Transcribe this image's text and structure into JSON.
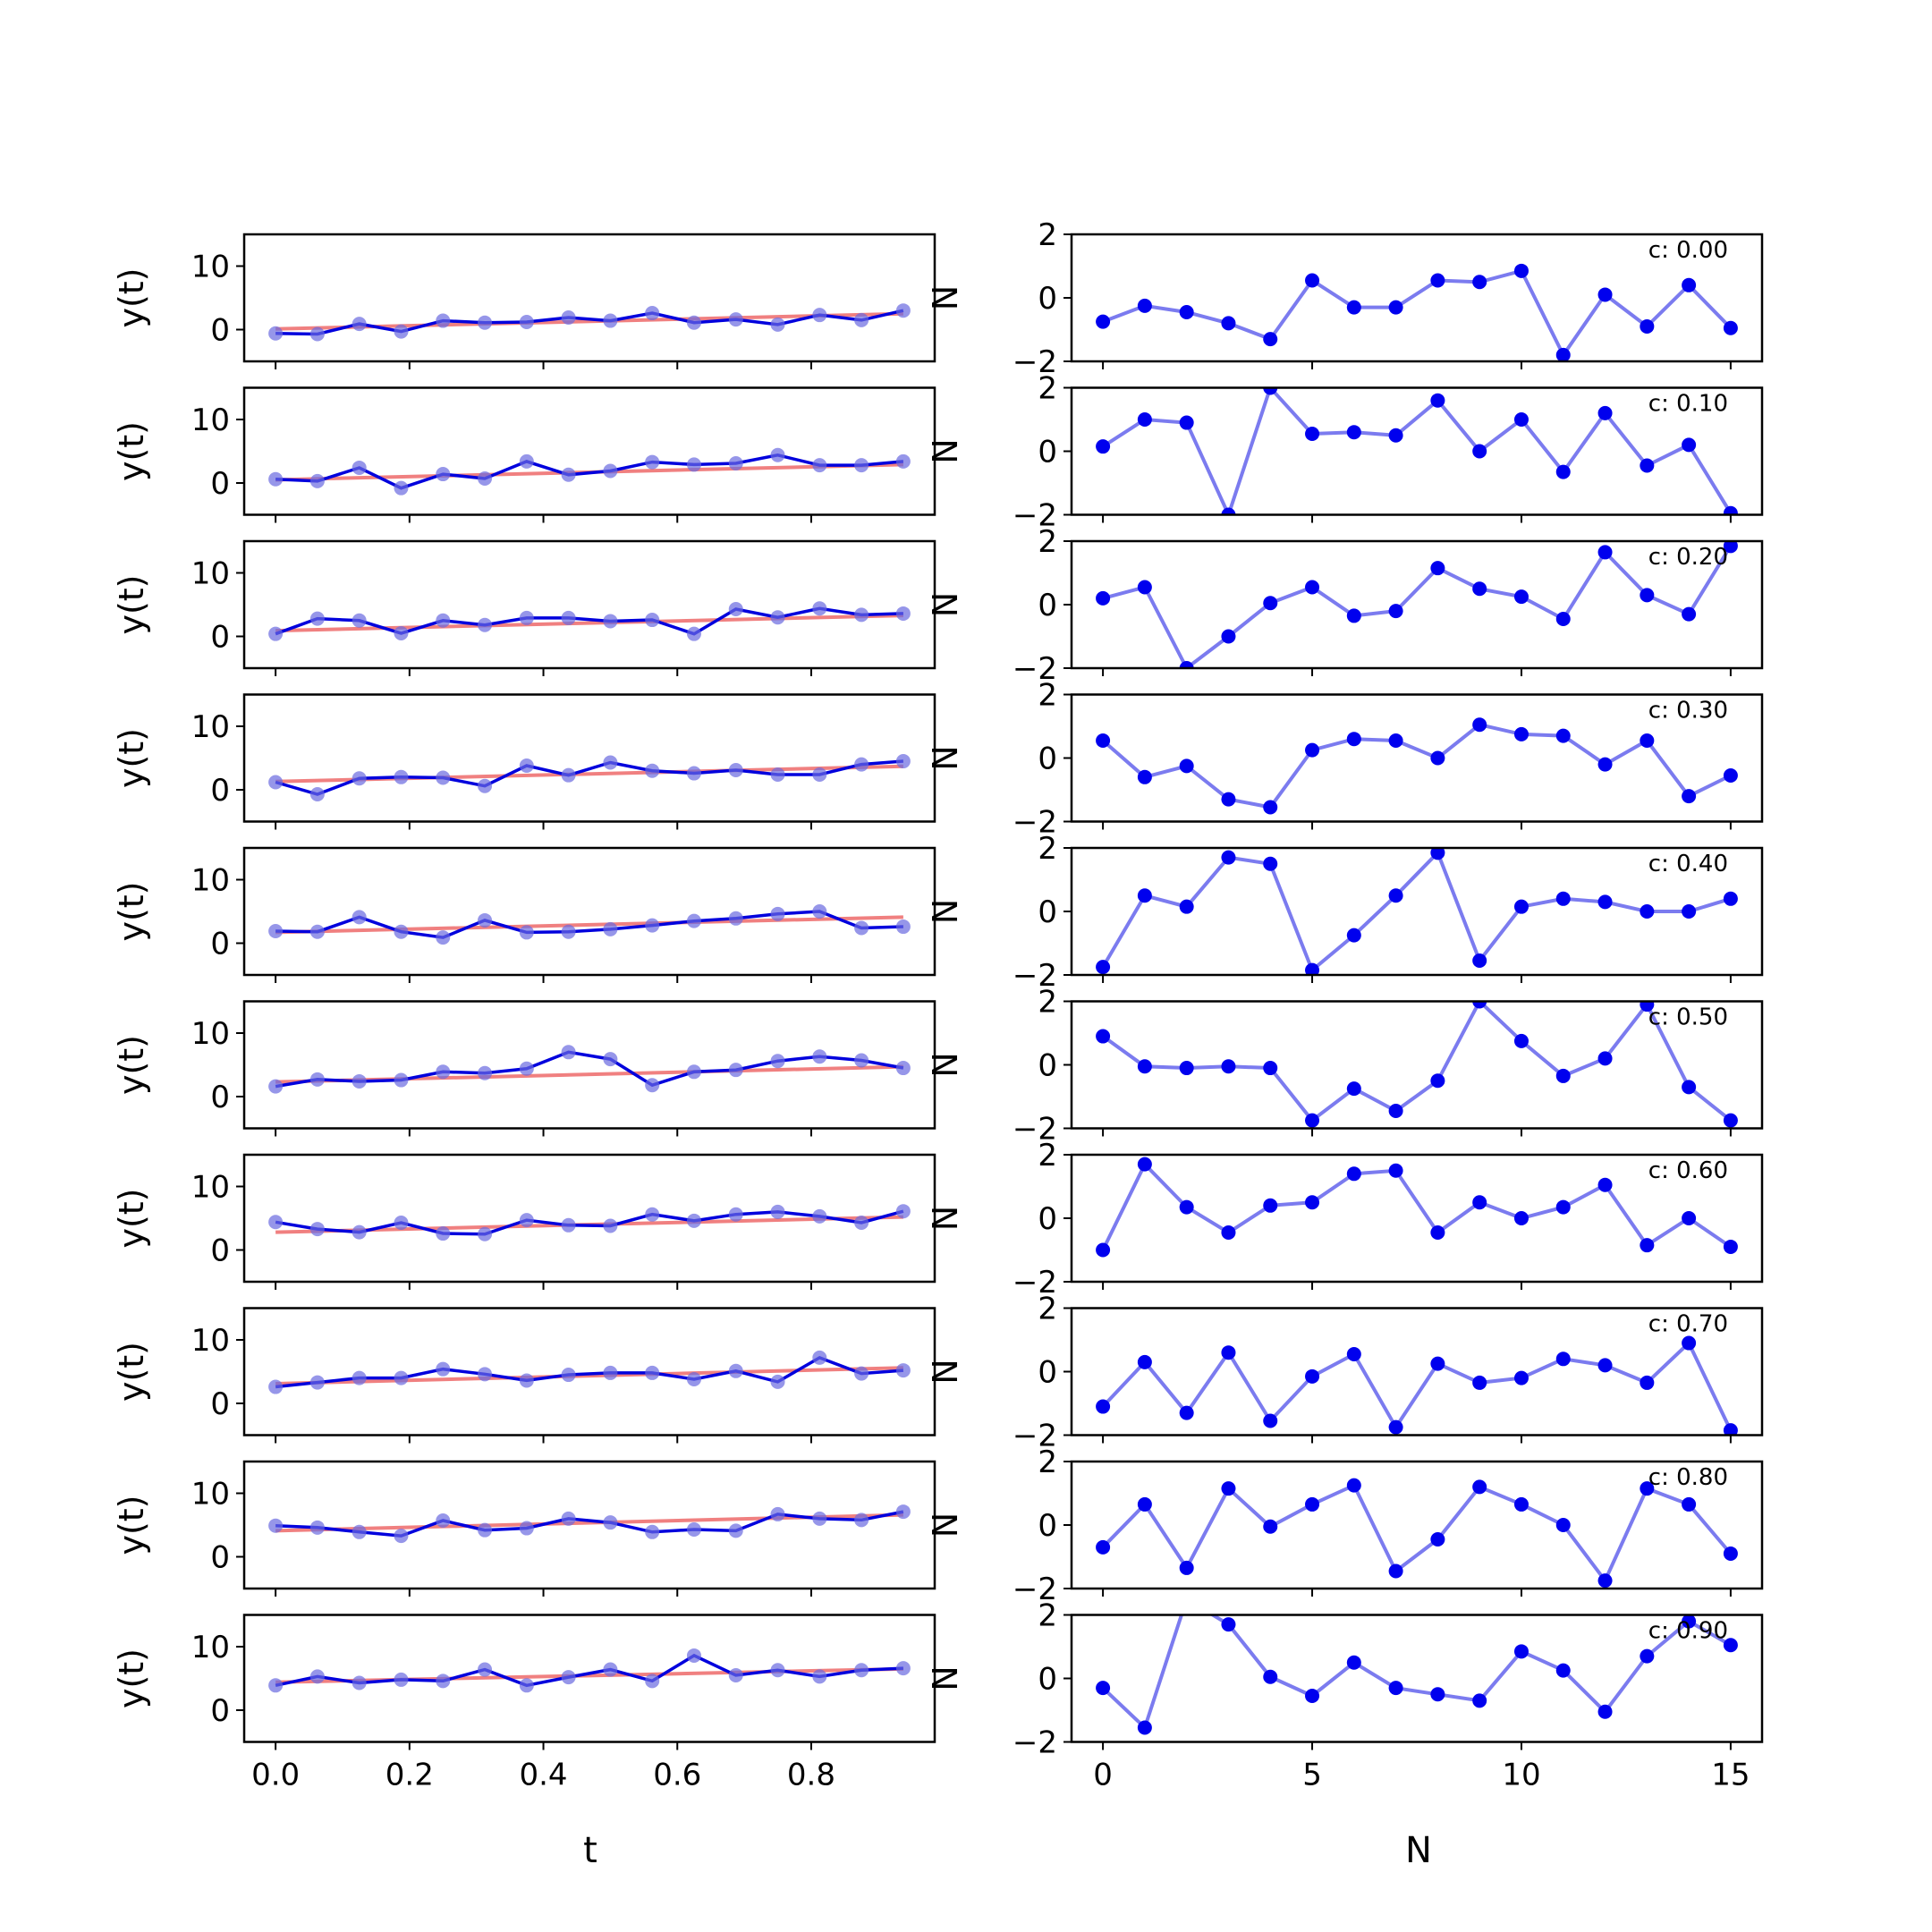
{
  "chart_data": {
    "type": "line",
    "left_panels": {
      "xlabel": "t",
      "ylabel": "y(t)",
      "xlim": [
        -0.0469,
        0.9844
      ],
      "ylim": [
        -5,
        15
      ],
      "x_ticks": [
        "0.0",
        "0.2",
        "0.4",
        "0.6",
        "0.8"
      ],
      "y_ticks": [
        "0",
        "10"
      ],
      "x": [
        0,
        0.0625,
        0.125,
        0.1875,
        0.25,
        0.3125,
        0.375,
        0.4375,
        0.5,
        0.5625,
        0.625,
        0.6875,
        0.75,
        0.8125,
        0.875,
        0.9375
      ],
      "fit_color": "#f08080",
      "series_color": "#0000dd",
      "marker_color": "#6a6ae0",
      "panels": [
        {
          "y": [
            -0.6,
            -0.7,
            0.9,
            -0.3,
            1.4,
            1.1,
            1.2,
            1.9,
            1.4,
            2.6,
            1.1,
            1.6,
            0.8,
            2.3,
            1.5,
            3.0
          ],
          "fit": [
            0.1,
            2.5
          ]
        },
        {
          "y": [
            0.6,
            0.3,
            2.4,
            -0.8,
            1.4,
            0.7,
            3.4,
            1.3,
            1.9,
            3.3,
            2.9,
            3.1,
            4.4,
            2.8,
            2.8,
            3.4
          ],
          "fit": [
            0.5,
            2.9
          ]
        },
        {
          "y": [
            0.4,
            2.8,
            2.5,
            0.5,
            2.5,
            1.8,
            2.9,
            2.9,
            2.4,
            2.6,
            0.4,
            4.3,
            3.0,
            4.4,
            3.4,
            3.6
          ],
          "fit": [
            0.9,
            3.3
          ]
        },
        {
          "y": [
            1.2,
            -0.7,
            1.8,
            2.0,
            1.9,
            0.6,
            3.8,
            2.3,
            4.3,
            3.0,
            2.6,
            3.1,
            2.4,
            2.4,
            4.0,
            4.5
          ],
          "fit": [
            1.3,
            3.7
          ]
        },
        {
          "y": [
            1.9,
            1.8,
            4.1,
            1.8,
            0.9,
            3.6,
            1.7,
            1.8,
            2.2,
            2.8,
            3.5,
            3.9,
            4.6,
            5.0,
            2.4,
            2.6
          ],
          "fit": [
            1.7,
            4.1
          ]
        },
        {
          "y": [
            1.6,
            2.7,
            2.4,
            2.6,
            3.9,
            3.7,
            4.4,
            7.0,
            5.9,
            1.8,
            3.9,
            4.2,
            5.6,
            6.3,
            5.7,
            4.5
          ],
          "fit": [
            2.3,
            4.7
          ]
        },
        {
          "y": [
            4.4,
            3.3,
            2.8,
            4.3,
            2.6,
            2.5,
            4.7,
            3.9,
            3.8,
            5.6,
            4.6,
            5.6,
            6.0,
            5.3,
            4.3,
            6.1
          ],
          "fit": [
            2.8,
            5.2
          ]
        },
        {
          "y": [
            2.6,
            3.3,
            4.0,
            4.0,
            5.4,
            4.6,
            3.6,
            4.5,
            4.8,
            4.8,
            3.8,
            5.1,
            3.4,
            7.2,
            4.7,
            5.2
          ],
          "fit": [
            3.1,
            5.6
          ]
        },
        {
          "y": [
            4.9,
            4.6,
            3.9,
            3.3,
            5.7,
            4.2,
            4.5,
            6.0,
            5.4,
            3.9,
            4.3,
            4.1,
            6.7,
            6.0,
            5.8,
            7.1
          ],
          "fit": [
            4.1,
            6.6
          ]
        },
        {
          "y": [
            3.9,
            5.3,
            4.3,
            4.8,
            4.6,
            6.4,
            3.9,
            5.2,
            6.4,
            4.6,
            8.6,
            5.5,
            6.3,
            5.3,
            6.3,
            6.6
          ],
          "fit": [
            4.4,
            6.5
          ]
        }
      ]
    },
    "right_panels": {
      "xlabel": "N",
      "ylabel": "N",
      "xlim": [
        -0.75,
        15.75
      ],
      "ylim": [
        -2,
        2
      ],
      "x_ticks": [
        "0",
        "5",
        "10",
        "15"
      ],
      "y_ticks": [
        "−2",
        "0",
        "2"
      ],
      "line_color": "#7b7bef",
      "marker_color": "#0000ee",
      "panels": [
        {
          "label": "c: 0.00",
          "y": [
            -0.75,
            -0.25,
            -0.45,
            -0.8,
            -1.3,
            0.55,
            -0.3,
            -0.3,
            0.55,
            0.5,
            0.85,
            -1.8,
            0.1,
            -0.9,
            0.4,
            -0.95
          ]
        },
        {
          "label": "c: 0.10",
          "y": [
            0.15,
            1.0,
            0.9,
            -2.0,
            2.0,
            0.55,
            0.6,
            0.5,
            1.6,
            0.0,
            1.0,
            -0.65,
            1.2,
            -0.45,
            0.2,
            -1.95
          ]
        },
        {
          "label": "c: 0.20",
          "y": [
            0.2,
            0.55,
            -2.0,
            -1.0,
            0.05,
            0.55,
            -0.35,
            -0.2,
            1.15,
            0.5,
            0.25,
            -0.45,
            1.65,
            0.3,
            -0.3,
            1.85
          ]
        },
        {
          "label": "c: 0.30",
          "y": [
            0.55,
            -0.6,
            -0.25,
            -1.3,
            -1.55,
            0.25,
            0.6,
            0.55,
            0.0,
            1.05,
            0.75,
            0.7,
            -0.2,
            0.55,
            -1.2,
            -0.55
          ]
        },
        {
          "label": "c: 0.40",
          "y": [
            -1.75,
            0.5,
            0.15,
            1.7,
            1.5,
            -1.85,
            -0.75,
            0.5,
            1.85,
            -1.55,
            0.15,
            0.4,
            0.3,
            0.0,
            0.0,
            0.4
          ]
        },
        {
          "label": "c: 0.50",
          "y": [
            0.9,
            -0.05,
            -0.1,
            -0.05,
            -0.1,
            -1.75,
            -0.75,
            -1.45,
            -0.5,
            2.0,
            0.75,
            -0.35,
            0.2,
            1.9,
            -0.7,
            -1.75
          ]
        },
        {
          "label": "c: 0.60",
          "y": [
            -1.0,
            1.7,
            0.35,
            -0.45,
            0.4,
            0.5,
            1.4,
            1.5,
            -0.45,
            0.5,
            0.0,
            0.35,
            1.05,
            -0.85,
            0.0,
            -0.9
          ]
        },
        {
          "label": "c: 0.70",
          "y": [
            -1.1,
            0.3,
            -1.3,
            0.6,
            -1.55,
            -0.15,
            0.55,
            -1.75,
            0.25,
            -0.35,
            -0.2,
            0.4,
            0.2,
            -0.35,
            0.9,
            -1.85
          ]
        },
        {
          "label": "c: 0.80",
          "y": [
            -0.7,
            0.65,
            -1.35,
            1.15,
            -0.05,
            0.65,
            1.25,
            -1.45,
            -0.45,
            1.2,
            0.65,
            0.0,
            -1.75,
            1.15,
            0.65,
            -0.9
          ]
        },
        {
          "label": "c: 0.90",
          "y": [
            -0.3,
            -1.55,
            2.5,
            1.7,
            0.05,
            -0.55,
            0.5,
            -0.3,
            -0.5,
            -0.7,
            0.85,
            0.25,
            -1.05,
            0.7,
            1.8,
            1.05
          ]
        }
      ]
    }
  }
}
